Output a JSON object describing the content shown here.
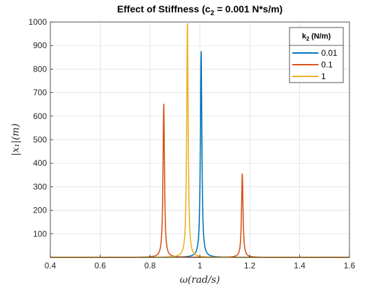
{
  "chart_data": {
    "type": "line",
    "title_main": "Effect of Stiffness (c",
    "title_sub": "2",
    "title_rest": " = 0.001 N*s/m)",
    "xlabel": "ω(rad/s)",
    "ylabel": "|x₁|(m)",
    "xlim": [
      0.4,
      1.6
    ],
    "ylim": [
      0,
      1000
    ],
    "xticks": [
      "0.4",
      "0.6",
      "0.8",
      "1",
      "1.2",
      "1.4",
      "1.6"
    ],
    "yticks": [
      "100",
      "200",
      "300",
      "400",
      "500",
      "600",
      "700",
      "800",
      "900",
      "1000"
    ],
    "grid": true,
    "legend": {
      "placement": "top-right",
      "title_main": "k",
      "title_sub": "2",
      "title_rest": " (N/m)"
    },
    "series": [
      {
        "name": "0.01",
        "color": "#0072BD",
        "peaks": [
          {
            "x": 1.005,
            "y": 876
          }
        ]
      },
      {
        "name": "0.1",
        "color": "#D95319",
        "peaks": [
          {
            "x": 0.855,
            "y": 652
          },
          {
            "x": 1.17,
            "y": 357
          }
        ]
      },
      {
        "name": "1",
        "color": "#EDB120",
        "peaks": [
          {
            "x": 0.95,
            "y": 1000
          }
        ]
      }
    ]
  }
}
